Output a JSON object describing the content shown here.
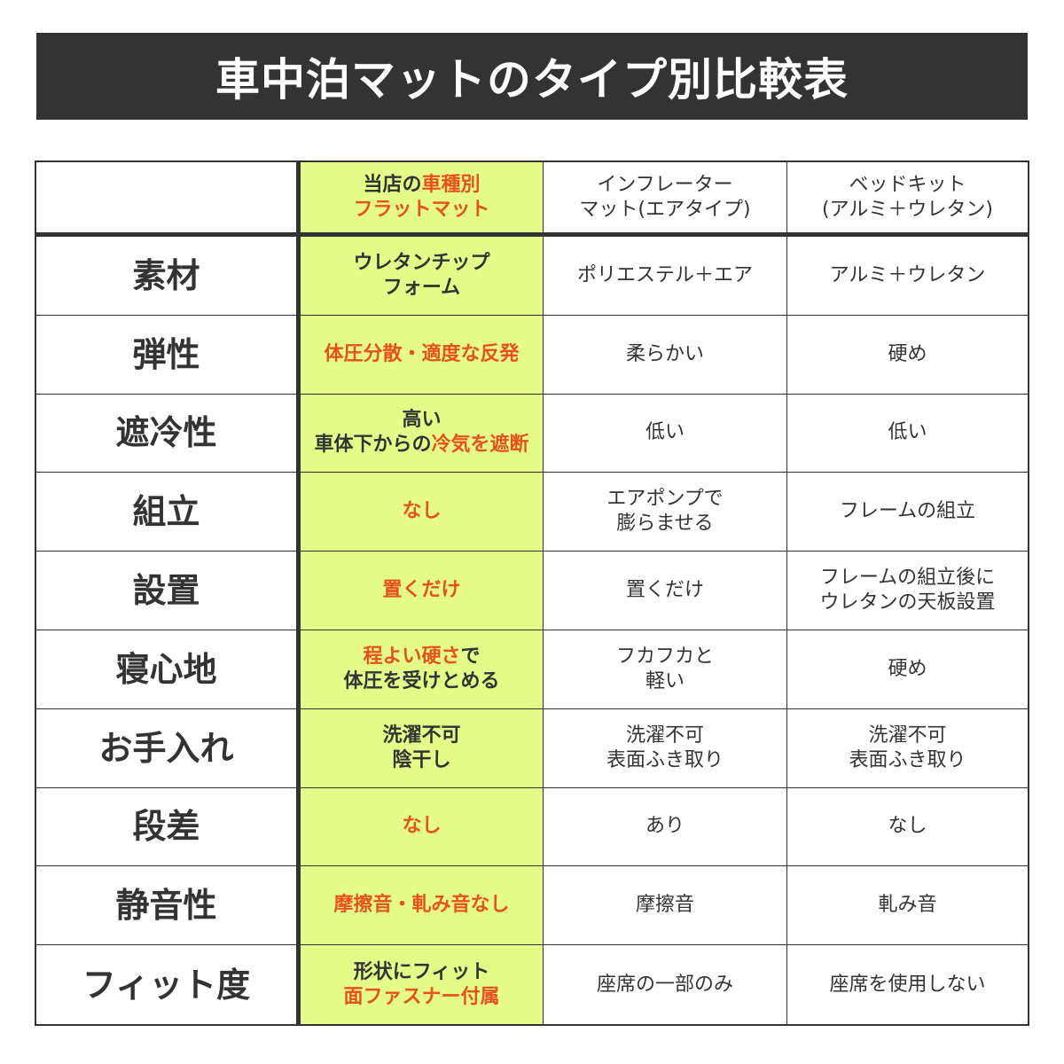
{
  "title": "車中泊マットのタイプ別比較表",
  "colors": {
    "highlight_bg": "#e5fd88",
    "accent_text": "#e8501f",
    "title_bg": "#333333"
  },
  "header": [
    [],
    [
      [
        {
          "t": "当店の"
        },
        {
          "t": "車種別",
          "hl": true
        }
      ],
      [
        {
          "t": "フラットマット",
          "hl": true
        }
      ]
    ],
    [
      [
        {
          "t": "インフレーター"
        }
      ],
      [
        {
          "t": "マット(エアタイプ)"
        }
      ]
    ],
    [
      [
        {
          "t": "ベッドキット"
        }
      ],
      [
        {
          "t": "(アルミ＋ウレタン)"
        }
      ]
    ]
  ],
  "rows": [
    {
      "label": "素材",
      "cells": [
        [
          [
            {
              "t": "ウレタンチップ"
            }
          ],
          [
            {
              "t": "フォーム"
            }
          ]
        ],
        [
          [
            {
              "t": "ポリエステル＋エア"
            }
          ]
        ],
        [
          [
            {
              "t": "アルミ＋ウレタン"
            }
          ]
        ]
      ]
    },
    {
      "label": "弾性",
      "cells": [
        [
          [
            {
              "t": "体圧分散・適度な反発",
              "hl": true
            }
          ]
        ],
        [
          [
            {
              "t": "柔らかい"
            }
          ]
        ],
        [
          [
            {
              "t": "硬め"
            }
          ]
        ]
      ]
    },
    {
      "label": "遮冷性",
      "cells": [
        [
          [
            {
              "t": "高い"
            }
          ],
          [
            {
              "t": "車体下からの"
            },
            {
              "t": "冷気を遮断",
              "hl": true
            }
          ]
        ],
        [
          [
            {
              "t": "低い"
            }
          ]
        ],
        [
          [
            {
              "t": "低い"
            }
          ]
        ]
      ]
    },
    {
      "label": "組立",
      "cells": [
        [
          [
            {
              "t": "なし",
              "hl": true
            }
          ]
        ],
        [
          [
            {
              "t": "エアポンプで"
            }
          ],
          [
            {
              "t": "膨らませる"
            }
          ]
        ],
        [
          [
            {
              "t": "フレームの組立"
            }
          ]
        ]
      ]
    },
    {
      "label": "設置",
      "cells": [
        [
          [
            {
              "t": "置くだけ",
              "hl": true
            }
          ]
        ],
        [
          [
            {
              "t": "置くだけ"
            }
          ]
        ],
        [
          [
            {
              "t": "フレームの組立後に"
            }
          ],
          [
            {
              "t": "ウレタンの天板設置"
            }
          ]
        ]
      ]
    },
    {
      "label": "寝心地",
      "cells": [
        [
          [
            {
              "t": "程よい硬さ",
              "hl": true
            },
            {
              "t": "で"
            }
          ],
          [
            {
              "t": "体圧を受けとめる"
            }
          ]
        ],
        [
          [
            {
              "t": "フカフカと"
            }
          ],
          [
            {
              "t": "軽い"
            }
          ]
        ],
        [
          [
            {
              "t": "硬め"
            }
          ]
        ]
      ]
    },
    {
      "label": "お手入れ",
      "cells": [
        [
          [
            {
              "t": "洗濯不可"
            }
          ],
          [
            {
              "t": "陰干し"
            }
          ]
        ],
        [
          [
            {
              "t": "洗濯不可"
            }
          ],
          [
            {
              "t": "表面ふき取り"
            }
          ]
        ],
        [
          [
            {
              "t": "洗濯不可"
            }
          ],
          [
            {
              "t": "表面ふき取り"
            }
          ]
        ]
      ]
    },
    {
      "label": "段差",
      "cells": [
        [
          [
            {
              "t": "なし",
              "hl": true
            }
          ]
        ],
        [
          [
            {
              "t": "あり"
            }
          ]
        ],
        [
          [
            {
              "t": "なし"
            }
          ]
        ]
      ]
    },
    {
      "label": "静音性",
      "cells": [
        [
          [
            {
              "t": "摩擦音・軋み音なし",
              "hl": true
            }
          ]
        ],
        [
          [
            {
              "t": "摩擦音"
            }
          ]
        ],
        [
          [
            {
              "t": "軋み音"
            }
          ]
        ]
      ]
    },
    {
      "label": "フィット度",
      "cells": [
        [
          [
            {
              "t": "形状にフィット"
            }
          ],
          [
            {
              "t": "面ファスナー付属",
              "hl": true
            }
          ]
        ],
        [
          [
            {
              "t": "座席の一部のみ"
            }
          ]
        ],
        [
          [
            {
              "t": "座席を使用しない"
            }
          ]
        ]
      ]
    }
  ]
}
